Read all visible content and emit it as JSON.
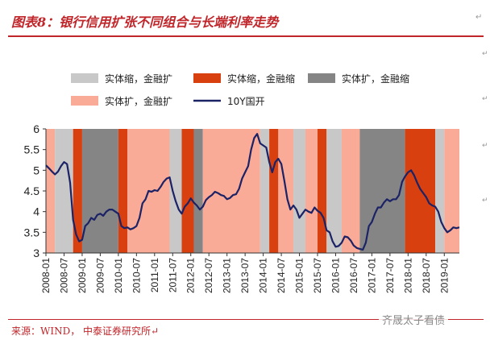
{
  "header": {
    "title": "图表8：银行信用扩张不同组合与长端利率走势",
    "mark": "↵"
  },
  "footer": {
    "source": "来源：WIND， 中泰证券研究所↵",
    "watermark": "齐晟太子看债"
  },
  "side_marks": [
    "↵",
    "↵",
    "↵",
    "↵"
  ],
  "chart_data": {
    "type": "line",
    "title": "",
    "xlabel": "",
    "ylabel": "",
    "ylim": [
      3,
      6
    ],
    "yticks": [
      "3",
      "3.5",
      "4",
      "4.5",
      "5",
      "5.5",
      "6"
    ],
    "xticks": [
      "2008-01",
      "2008-07",
      "2009-01",
      "2009-07",
      "2010-01",
      "2010-07",
      "2011-01",
      "2011-07",
      "2012-01",
      "2012-07",
      "2013-01",
      "2013-07",
      "2014-01",
      "2014-07",
      "2015-01",
      "2015-07",
      "2016-01",
      "2016-07",
      "2017-01",
      "2017-07",
      "2018-01",
      "2018-07",
      "2019-01"
    ],
    "legend_position": "top",
    "regime_colors": {
      "实体缩，金融扩": "#c8c8c8",
      "实体缩，金融缩": "#d9400f",
      "实体扩，金融缩": "#858585",
      "实体扩，金融扩": "#f9ab97"
    },
    "legend": [
      {
        "label": "实体缩，金融扩",
        "kind": "box",
        "color": "#c8c8c8"
      },
      {
        "label": "实体缩，金融缩",
        "kind": "box",
        "color": "#d9400f"
      },
      {
        "label": "实体扩，金融缩",
        "kind": "box",
        "color": "#858585"
      },
      {
        "label": "实体扩，金融扩",
        "kind": "box",
        "color": "#f9ab97"
      },
      {
        "label": "10Y国开",
        "kind": "line",
        "color": "#1b2266"
      }
    ],
    "regimes": [
      {
        "start": "2008-01",
        "end": "2008-04",
        "type": "实体扩，金融扩"
      },
      {
        "start": "2008-04",
        "end": "2008-10",
        "type": "实体缩，金融扩"
      },
      {
        "start": "2008-10",
        "end": "2009-01",
        "type": "实体缩，金融缩"
      },
      {
        "start": "2009-01",
        "end": "2010-01",
        "type": "实体扩，金融缩"
      },
      {
        "start": "2010-01",
        "end": "2010-04",
        "type": "实体缩，金融缩"
      },
      {
        "start": "2010-04",
        "end": "2011-06",
        "type": "实体扩，金融扩"
      },
      {
        "start": "2011-06",
        "end": "2011-10",
        "type": "实体缩，金融扩"
      },
      {
        "start": "2011-10",
        "end": "2012-02",
        "type": "实体缩，金融缩"
      },
      {
        "start": "2012-02",
        "end": "2012-05",
        "type": "实体扩，金融缩"
      },
      {
        "start": "2012-05",
        "end": "2013-12",
        "type": "实体扩，金融扩"
      },
      {
        "start": "2013-12",
        "end": "2014-03",
        "type": "实体缩，金融扩"
      },
      {
        "start": "2014-03",
        "end": "2014-06",
        "type": "实体缩，金融缩"
      },
      {
        "start": "2014-06",
        "end": "2014-11",
        "type": "实体扩，金融扩"
      },
      {
        "start": "2014-11",
        "end": "2015-03",
        "type": "实体缩，金融扩"
      },
      {
        "start": "2015-03",
        "end": "2015-07",
        "type": "实体扩，金融扩"
      },
      {
        "start": "2015-07",
        "end": "2015-10",
        "type": "实体缩，金融缩"
      },
      {
        "start": "2015-10",
        "end": "2016-03",
        "type": "实体缩，金融扩"
      },
      {
        "start": "2016-03",
        "end": "2016-09",
        "type": "实体扩，金融扩"
      },
      {
        "start": "2016-09",
        "end": "2017-12",
        "type": "实体扩，金融缩"
      },
      {
        "start": "2017-12",
        "end": "2018-10",
        "type": "实体缩，金融缩"
      },
      {
        "start": "2018-10",
        "end": "2019-01",
        "type": "实体缩，金融扩"
      },
      {
        "start": "2019-01",
        "end": "2019-06",
        "type": "实体扩，金融扩"
      }
    ],
    "series": [
      {
        "name": "10Y国开",
        "color": "#1b2266",
        "points": [
          [
            "2008-01",
            5.12
          ],
          [
            "2008-02",
            5.05
          ],
          [
            "2008-03",
            4.97
          ],
          [
            "2008-04",
            4.9
          ],
          [
            "2008-05",
            4.97
          ],
          [
            "2008-06",
            5.1
          ],
          [
            "2008-07",
            5.2
          ],
          [
            "2008-08",
            5.15
          ],
          [
            "2008-09",
            4.7
          ],
          [
            "2008-10",
            3.8
          ],
          [
            "2008-11",
            3.45
          ],
          [
            "2008-12",
            3.28
          ],
          [
            "2009-01",
            3.32
          ],
          [
            "2009-02",
            3.65
          ],
          [
            "2009-03",
            3.72
          ],
          [
            "2009-04",
            3.85
          ],
          [
            "2009-05",
            3.8
          ],
          [
            "2009-06",
            3.92
          ],
          [
            "2009-07",
            3.95
          ],
          [
            "2009-08",
            3.9
          ],
          [
            "2009-09",
            4.0
          ],
          [
            "2009-10",
            4.05
          ],
          [
            "2009-11",
            4.05
          ],
          [
            "2009-12",
            4.0
          ],
          [
            "2010-01",
            3.95
          ],
          [
            "2010-02",
            3.65
          ],
          [
            "2010-03",
            3.6
          ],
          [
            "2010-04",
            3.62
          ],
          [
            "2010-05",
            3.57
          ],
          [
            "2010-06",
            3.6
          ],
          [
            "2010-07",
            3.65
          ],
          [
            "2010-08",
            3.85
          ],
          [
            "2010-09",
            4.2
          ],
          [
            "2010-10",
            4.3
          ],
          [
            "2010-11",
            4.5
          ],
          [
            "2010-12",
            4.48
          ],
          [
            "2011-01",
            4.52
          ],
          [
            "2011-02",
            4.5
          ],
          [
            "2011-03",
            4.6
          ],
          [
            "2011-04",
            4.72
          ],
          [
            "2011-05",
            4.8
          ],
          [
            "2011-06",
            4.83
          ],
          [
            "2011-07",
            4.5
          ],
          [
            "2011-08",
            4.25
          ],
          [
            "2011-09",
            4.05
          ],
          [
            "2011-10",
            3.95
          ],
          [
            "2011-11",
            4.12
          ],
          [
            "2011-12",
            4.2
          ],
          [
            "2012-01",
            4.32
          ],
          [
            "2012-02",
            4.22
          ],
          [
            "2012-03",
            4.15
          ],
          [
            "2012-04",
            4.05
          ],
          [
            "2012-05",
            4.12
          ],
          [
            "2012-06",
            4.28
          ],
          [
            "2012-07",
            4.35
          ],
          [
            "2012-08",
            4.4
          ],
          [
            "2012-09",
            4.48
          ],
          [
            "2012-10",
            4.45
          ],
          [
            "2012-11",
            4.4
          ],
          [
            "2012-12",
            4.38
          ],
          [
            "2013-01",
            4.3
          ],
          [
            "2013-02",
            4.33
          ],
          [
            "2013-03",
            4.4
          ],
          [
            "2013-04",
            4.42
          ],
          [
            "2013-05",
            4.55
          ],
          [
            "2013-06",
            4.8
          ],
          [
            "2013-07",
            4.95
          ],
          [
            "2013-08",
            5.1
          ],
          [
            "2013-09",
            5.5
          ],
          [
            "2013-10",
            5.78
          ],
          [
            "2013-11",
            5.88
          ],
          [
            "2013-12",
            5.65
          ],
          [
            "2014-01",
            5.6
          ],
          [
            "2014-02",
            5.55
          ],
          [
            "2014-03",
            5.2
          ],
          [
            "2014-04",
            4.95
          ],
          [
            "2014-05",
            5.2
          ],
          [
            "2014-06",
            5.28
          ],
          [
            "2014-07",
            5.15
          ],
          [
            "2014-08",
            4.75
          ],
          [
            "2014-09",
            4.3
          ],
          [
            "2014-10",
            4.05
          ],
          [
            "2014-11",
            4.15
          ],
          [
            "2014-12",
            4.05
          ],
          [
            "2015-01",
            3.85
          ],
          [
            "2015-02",
            3.95
          ],
          [
            "2015-03",
            4.05
          ],
          [
            "2015-04",
            4.0
          ],
          [
            "2015-05",
            3.97
          ],
          [
            "2015-06",
            4.1
          ],
          [
            "2015-07",
            4.02
          ],
          [
            "2015-08",
            3.97
          ],
          [
            "2015-09",
            3.85
          ],
          [
            "2015-10",
            3.55
          ],
          [
            "2015-11",
            3.5
          ],
          [
            "2015-12",
            3.28
          ],
          [
            "2016-01",
            3.15
          ],
          [
            "2016-02",
            3.17
          ],
          [
            "2016-03",
            3.25
          ],
          [
            "2016-04",
            3.4
          ],
          [
            "2016-05",
            3.38
          ],
          [
            "2016-06",
            3.3
          ],
          [
            "2016-07",
            3.18
          ],
          [
            "2016-08",
            3.12
          ],
          [
            "2016-09",
            3.1
          ],
          [
            "2016-10",
            3.08
          ],
          [
            "2016-11",
            3.25
          ],
          [
            "2016-12",
            3.65
          ],
          [
            "2017-01",
            3.75
          ],
          [
            "2017-02",
            3.95
          ],
          [
            "2017-03",
            4.1
          ],
          [
            "2017-04",
            4.1
          ],
          [
            "2017-05",
            4.22
          ],
          [
            "2017-06",
            4.3
          ],
          [
            "2017-07",
            4.25
          ],
          [
            "2017-08",
            4.3
          ],
          [
            "2017-09",
            4.3
          ],
          [
            "2017-10",
            4.4
          ],
          [
            "2017-11",
            4.72
          ],
          [
            "2017-12",
            4.85
          ],
          [
            "2018-01",
            4.95
          ],
          [
            "2018-02",
            5.0
          ],
          [
            "2018-03",
            4.88
          ],
          [
            "2018-04",
            4.7
          ],
          [
            "2018-05",
            4.55
          ],
          [
            "2018-06",
            4.45
          ],
          [
            "2018-07",
            4.35
          ],
          [
            "2018-08",
            4.2
          ],
          [
            "2018-09",
            4.15
          ],
          [
            "2018-10",
            4.12
          ],
          [
            "2018-11",
            4.0
          ],
          [
            "2018-12",
            3.75
          ],
          [
            "2019-01",
            3.6
          ],
          [
            "2019-02",
            3.5
          ],
          [
            "2019-03",
            3.55
          ],
          [
            "2019-04",
            3.62
          ],
          [
            "2019-05",
            3.6
          ],
          [
            "2019-06",
            3.62
          ]
        ]
      }
    ]
  }
}
